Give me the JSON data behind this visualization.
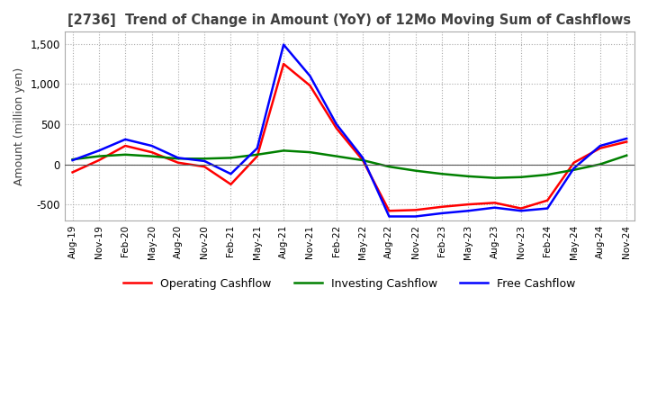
{
  "title": "[2736]  Trend of Change in Amount (YoY) of 12Mo Moving Sum of Cashflows",
  "ylabel": "Amount (million yen)",
  "ylim": [
    -700,
    1650
  ],
  "yticks": [
    -500,
    0,
    500,
    1000,
    1500
  ],
  "x_labels": [
    "Aug-19",
    "Nov-19",
    "Feb-20",
    "May-20",
    "Aug-20",
    "Nov-20",
    "Feb-21",
    "May-21",
    "Aug-21",
    "Nov-21",
    "Feb-22",
    "May-22",
    "Aug-22",
    "Nov-22",
    "Feb-23",
    "May-23",
    "Aug-23",
    "Nov-23",
    "Feb-24",
    "May-24",
    "Aug-24",
    "Nov-24"
  ],
  "operating": [
    -100,
    50,
    230,
    150,
    20,
    -30,
    -250,
    100,
    1250,
    980,
    450,
    50,
    -580,
    -570,
    -530,
    -500,
    -480,
    -550,
    -450,
    20,
    200,
    280
  ],
  "investing": [
    60,
    100,
    120,
    100,
    70,
    70,
    80,
    120,
    170,
    150,
    100,
    50,
    -30,
    -80,
    -120,
    -150,
    -170,
    -160,
    -130,
    -70,
    0,
    110
  ],
  "free": [
    50,
    170,
    310,
    230,
    80,
    40,
    -120,
    200,
    1490,
    1100,
    500,
    80,
    -650,
    -650,
    -610,
    -580,
    -540,
    -580,
    -550,
    -50,
    230,
    320
  ],
  "op_color": "#ff0000",
  "inv_color": "#008000",
  "free_color": "#0000ff",
  "bg_color": "#ffffff",
  "grid_color": "#aaaaaa",
  "title_color": "#404040",
  "legend_labels": [
    "Operating Cashflow",
    "Investing Cashflow",
    "Free Cashflow"
  ]
}
